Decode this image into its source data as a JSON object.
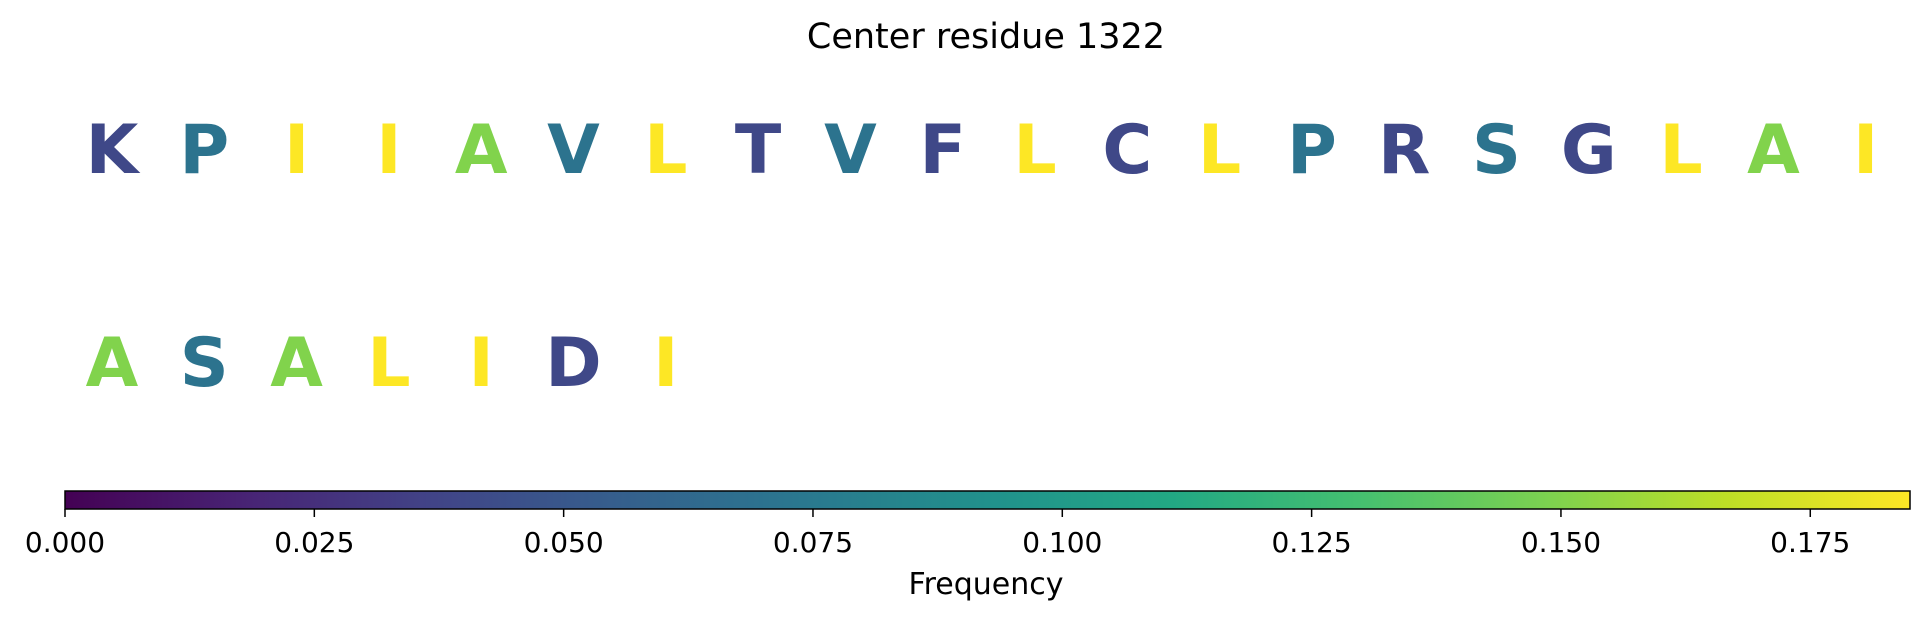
{
  "chart_data": {
    "type": "sequence-logo",
    "title": "Center residue 1322",
    "rows": [
      {
        "residues": [
          {
            "letter": "K",
            "frequency": 0.04
          },
          {
            "letter": "P",
            "frequency": 0.07
          },
          {
            "letter": "I",
            "frequency": 0.185
          },
          {
            "letter": "I",
            "frequency": 0.185
          },
          {
            "letter": "A",
            "frequency": 0.15
          },
          {
            "letter": "V",
            "frequency": 0.07
          },
          {
            "letter": "L",
            "frequency": 0.185
          },
          {
            "letter": "T",
            "frequency": 0.04
          },
          {
            "letter": "V",
            "frequency": 0.07
          },
          {
            "letter": "F",
            "frequency": 0.04
          },
          {
            "letter": "L",
            "frequency": 0.185
          },
          {
            "letter": "C",
            "frequency": 0.04
          },
          {
            "letter": "L",
            "frequency": 0.185
          },
          {
            "letter": "P",
            "frequency": 0.07
          },
          {
            "letter": "R",
            "frequency": 0.04
          },
          {
            "letter": "S",
            "frequency": 0.07
          },
          {
            "letter": "G",
            "frequency": 0.04
          },
          {
            "letter": "L",
            "frequency": 0.185
          },
          {
            "letter": "A",
            "frequency": 0.15
          },
          {
            "letter": "I",
            "frequency": 0.185
          }
        ]
      },
      {
        "residues": [
          {
            "letter": "A",
            "frequency": 0.15
          },
          {
            "letter": "S",
            "frequency": 0.07
          },
          {
            "letter": "A",
            "frequency": 0.15
          },
          {
            "letter": "L",
            "frequency": 0.185
          },
          {
            "letter": "I",
            "frequency": 0.185
          },
          {
            "letter": "D",
            "frequency": 0.04
          },
          {
            "letter": "I",
            "frequency": 0.185
          }
        ]
      }
    ],
    "colorbar": {
      "label": "Frequency",
      "colormap": "viridis",
      "range": [
        0,
        0.185
      ],
      "ticks": [
        0.0,
        0.025,
        0.05,
        0.075,
        0.1,
        0.125,
        0.15,
        0.175
      ],
      "tick_labels": [
        "0.000",
        "0.025",
        "0.050",
        "0.075",
        "0.100",
        "0.125",
        "0.150",
        "0.175"
      ],
      "orientation": "horizontal",
      "placement": "bottom"
    }
  }
}
